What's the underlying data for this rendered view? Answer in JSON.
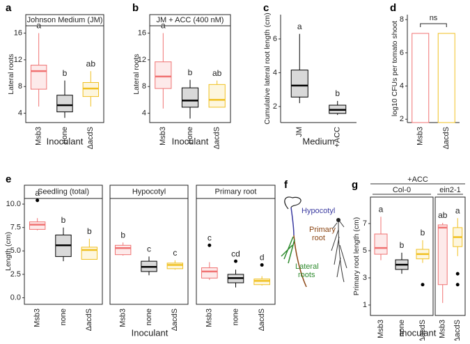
{
  "chart_data": [
    {
      "type": "box",
      "panel": "a",
      "ylabel": "Lateral roots",
      "xlabel": "Inoculant",
      "ylim": [
        2.6,
        17.1
      ],
      "yticks": [
        4,
        8,
        12,
        16
      ],
      "facets": [
        {
          "strip": "Johnson Medium (JM)",
          "categories": [
            "Msb3",
            "none",
            "ΔacdS"
          ],
          "colors": [
            "#f07272",
            "#000000",
            "#f0c020"
          ],
          "boxes": [
            {
              "min": 5.0,
              "q1": 7.6,
              "median": 10.3,
              "q3": 11.2,
              "max": 16,
              "letter": "a"
            },
            {
              "min": 3.3,
              "q1": 4.2,
              "median": 5.2,
              "q3": 6.7,
              "max": 8.9,
              "letter": "b"
            },
            {
              "min": 5.0,
              "q1": 6.5,
              "median": 7.7,
              "q3": 8.6,
              "max": 10.3,
              "letter": "ab"
            }
          ]
        }
      ]
    },
    {
      "type": "box",
      "panel": "b",
      "ylabel": "Lateral roots",
      "xlabel": "Inoculant",
      "ylim": [
        2.6,
        17.1
      ],
      "yticks": [
        4,
        8,
        12,
        16
      ],
      "facets": [
        {
          "strip": "JM + ACC (400 nM)",
          "categories": [
            "Msb3",
            "none",
            "ΔacdS"
          ],
          "colors": [
            "#f07272",
            "#000000",
            "#f0c020"
          ],
          "boxes": [
            {
              "min": 4.7,
              "q1": 7.7,
              "median": 9.5,
              "q3": 11.7,
              "max": 16,
              "letter": "a"
            },
            {
              "min": 3.2,
              "q1": 4.9,
              "median": 5.9,
              "q3": 7.8,
              "max": 9.0,
              "letter": "b"
            },
            {
              "min": 4.9,
              "q1": 4.9,
              "median": 6.0,
              "q3": 8.3,
              "max": 8.9,
              "letter": "ab"
            }
          ]
        }
      ]
    },
    {
      "type": "box",
      "panel": "c",
      "ylabel": "Cumulative lateral root length (cm)",
      "xlabel": "Medium",
      "ylim": [
        1.05,
        7.44
      ],
      "yticks": [
        2,
        4,
        6
      ],
      "facets": [
        {
          "categories": [
            "JM",
            "+ACC"
          ],
          "colors": [
            "#000000",
            "#000000"
          ],
          "boxes": [
            {
              "min": 2.2,
              "q1": 2.56,
              "median": 3.24,
              "q3": 4.16,
              "max": 6.3,
              "letter": "a"
            },
            {
              "min": 1.5,
              "q1": 1.59,
              "median": 1.8,
              "q3": 2.08,
              "max": 2.33,
              "letter": "b"
            }
          ]
        }
      ]
    },
    {
      "type": "bar",
      "panel": "d",
      "ylabel": "log10 CFUs per tomato shoot",
      "ylim": [
        1.8,
        8.3
      ],
      "yticks": [
        2,
        4,
        6,
        8
      ],
      "categories": [
        "Msb3",
        "ΔacdS"
      ],
      "values": [
        7.17,
        7.17
      ],
      "colors": [
        "#f07272",
        "#f0c020"
      ],
      "annotation": "ns"
    },
    {
      "type": "box",
      "panel": "e",
      "ylabel": "Length (cm)",
      "xlabel": "Inoculant",
      "ylim": [
        -0.7,
        10.6
      ],
      "yticks": [
        {
          "value": 0,
          "label": "0.0"
        },
        2.5,
        {
          "value": 5,
          "label": "5.0"
        },
        7.5,
        {
          "value": 10,
          "label": "10.0"
        }
      ],
      "facets": [
        {
          "strip": "Seedling (total)",
          "categories": [
            "Msb3",
            "none",
            "ΔacdS"
          ],
          "colors": [
            "#f07272",
            "#000000",
            "#f0c020"
          ],
          "boxes": [
            {
              "min": 7.2,
              "q1": 7.3,
              "median": 7.8,
              "q3": 8.1,
              "max": 8.5,
              "outliers": [
                10.4
              ],
              "letter": "a"
            },
            {
              "min": 3.9,
              "q1": 4.4,
              "median": 5.6,
              "q3": 6.7,
              "max": 7.5,
              "letter": "b"
            },
            {
              "min": 4.1,
              "q1": 4.1,
              "median": 5.1,
              "q3": 5.4,
              "max": 6.3,
              "letter": "b"
            }
          ]
        },
        {
          "strip": "Hypocotyl",
          "categories": [
            "Msb3",
            "none",
            "ΔacdS"
          ],
          "colors": [
            "#f07272",
            "#000000",
            "#f0c020"
          ],
          "boxes": [
            {
              "min": 4.5,
              "q1": 4.6,
              "median": 5.3,
              "q3": 5.6,
              "max": 5.9,
              "letter": "b"
            },
            {
              "min": 2.4,
              "q1": 2.8,
              "median": 3.3,
              "q3": 3.9,
              "max": 4.4,
              "letter": "c"
            },
            {
              "min": 3.0,
              "q1": 3.1,
              "median": 3.5,
              "q3": 3.7,
              "max": 4.0,
              "letter": "c"
            }
          ]
        },
        {
          "strip": "Primary root",
          "categories": [
            "Msb3",
            "none",
            "ΔacdS"
          ],
          "colors": [
            "#f07272",
            "#000000",
            "#f0c020"
          ],
          "boxes": [
            {
              "min": 1.9,
              "q1": 2.1,
              "median": 2.8,
              "q3": 3.2,
              "max": 3.8,
              "outliers": [
                5.6
              ],
              "letter": "c"
            },
            {
              "min": 1.1,
              "q1": 1.6,
              "median": 2.1,
              "q3": 2.5,
              "max": 3.0,
              "outliers": [
                3.9
              ],
              "letter": "cd"
            },
            {
              "min": 1.3,
              "q1": 1.4,
              "median": 1.8,
              "q3": 2.0,
              "max": 2.3,
              "outliers": [
                3.5
              ],
              "letter": "d"
            }
          ]
        }
      ]
    },
    {
      "type": "box",
      "panel": "g",
      "header": "+ACC",
      "ylabel": "Primary root length (cm)",
      "xlabel": "Inoculant",
      "ylim": [
        0.23,
        8.95
      ],
      "yticks": [
        1,
        3,
        5,
        7
      ],
      "facets": [
        {
          "strip": "Col-0",
          "categories": [
            "Msb3",
            "none",
            "ΔacdS"
          ],
          "colors": [
            "#f07272",
            "#000000",
            "#f0c020"
          ],
          "boxes": [
            {
              "min": 4.3,
              "q1": 4.74,
              "median": 5.2,
              "q3": 6.23,
              "max": 7.5,
              "letter": "a"
            },
            {
              "min": 3.3,
              "q1": 3.62,
              "median": 3.97,
              "q3": 4.33,
              "max": 4.85,
              "letter": "b"
            },
            {
              "min": 4.1,
              "q1": 4.4,
              "median": 4.75,
              "q3": 5.1,
              "max": 5.77,
              "outliers": [
                2.5
              ],
              "letter": "b"
            }
          ]
        },
        {
          "strip": "ein2-1",
          "categories": [
            "Msb3",
            "ΔacdS"
          ],
          "colors": [
            "#f07272",
            "#f0c020"
          ],
          "boxes": [
            {
              "min": 1.15,
              "q1": 2.5,
              "median": 6.7,
              "q3": 6.9,
              "max": 7.05,
              "letter": "ab"
            },
            {
              "min": 4.6,
              "q1": 5.3,
              "median": 6.0,
              "q3": 6.7,
              "max": 7.4,
              "outliers": [
                3.3,
                2.5
              ],
              "letter": "a"
            }
          ]
        }
      ]
    }
  ],
  "diagram": {
    "panel": "f",
    "hypocotyl": "Hypocotyl",
    "primary_root": [
      "Primary",
      "root"
    ],
    "lateral_roots": [
      "Lateral",
      "roots"
    ]
  }
}
